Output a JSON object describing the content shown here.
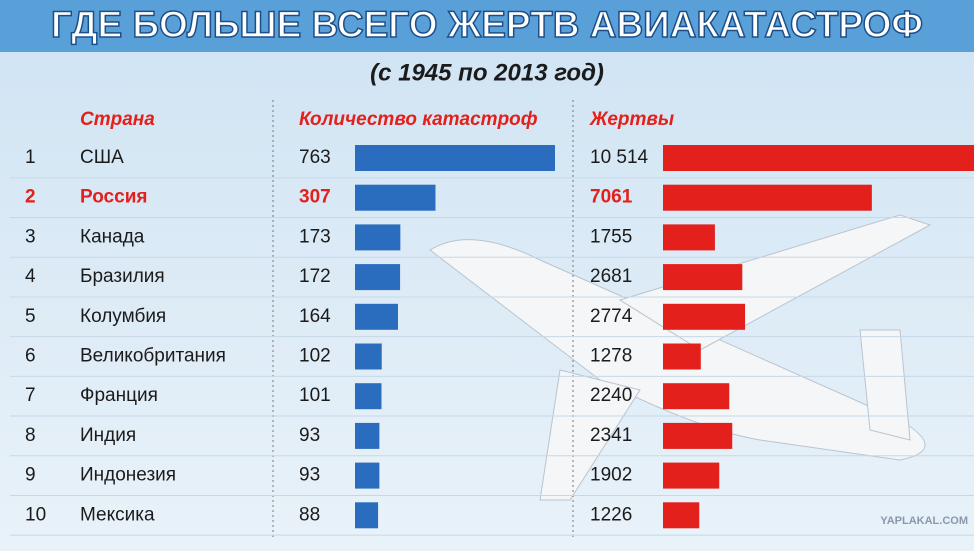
{
  "chart_data": {
    "type": "bar",
    "title": "ГДЕ БОЛЬШЕ ВСЕГО ЖЕРТВ АВИАКАТАСТРОФ",
    "subtitle": "(с 1945 по 2013 год)",
    "category_header": "Страна",
    "ranks": [
      1,
      2,
      3,
      4,
      5,
      6,
      7,
      8,
      9,
      10
    ],
    "categories": [
      "США",
      "Россия",
      "Канада",
      "Бразилия",
      "Колумбия",
      "Великобритания",
      "Франция",
      "Индия",
      "Индонезия",
      "Мексика"
    ],
    "highlight": "Россия",
    "highlight_color": "#e3201b",
    "series": [
      {
        "name": "Количество катастроф",
        "color": "#2a6dbf",
        "values": [
          763,
          307,
          173,
          172,
          164,
          102,
          101,
          93,
          93,
          88
        ]
      },
      {
        "name": "Жертвы",
        "color": "#e3201b",
        "values": [
          10514,
          7061,
          1755,
          2681,
          2774,
          1278,
          2240,
          2341,
          1902,
          1226
        ],
        "value_labels": [
          "10 514",
          "7061",
          "1755",
          "2681",
          "2774",
          "1278",
          "2240",
          "2341",
          "1902",
          "1226"
        ]
      }
    ],
    "watermark": "YAPLAKAL.COM"
  }
}
